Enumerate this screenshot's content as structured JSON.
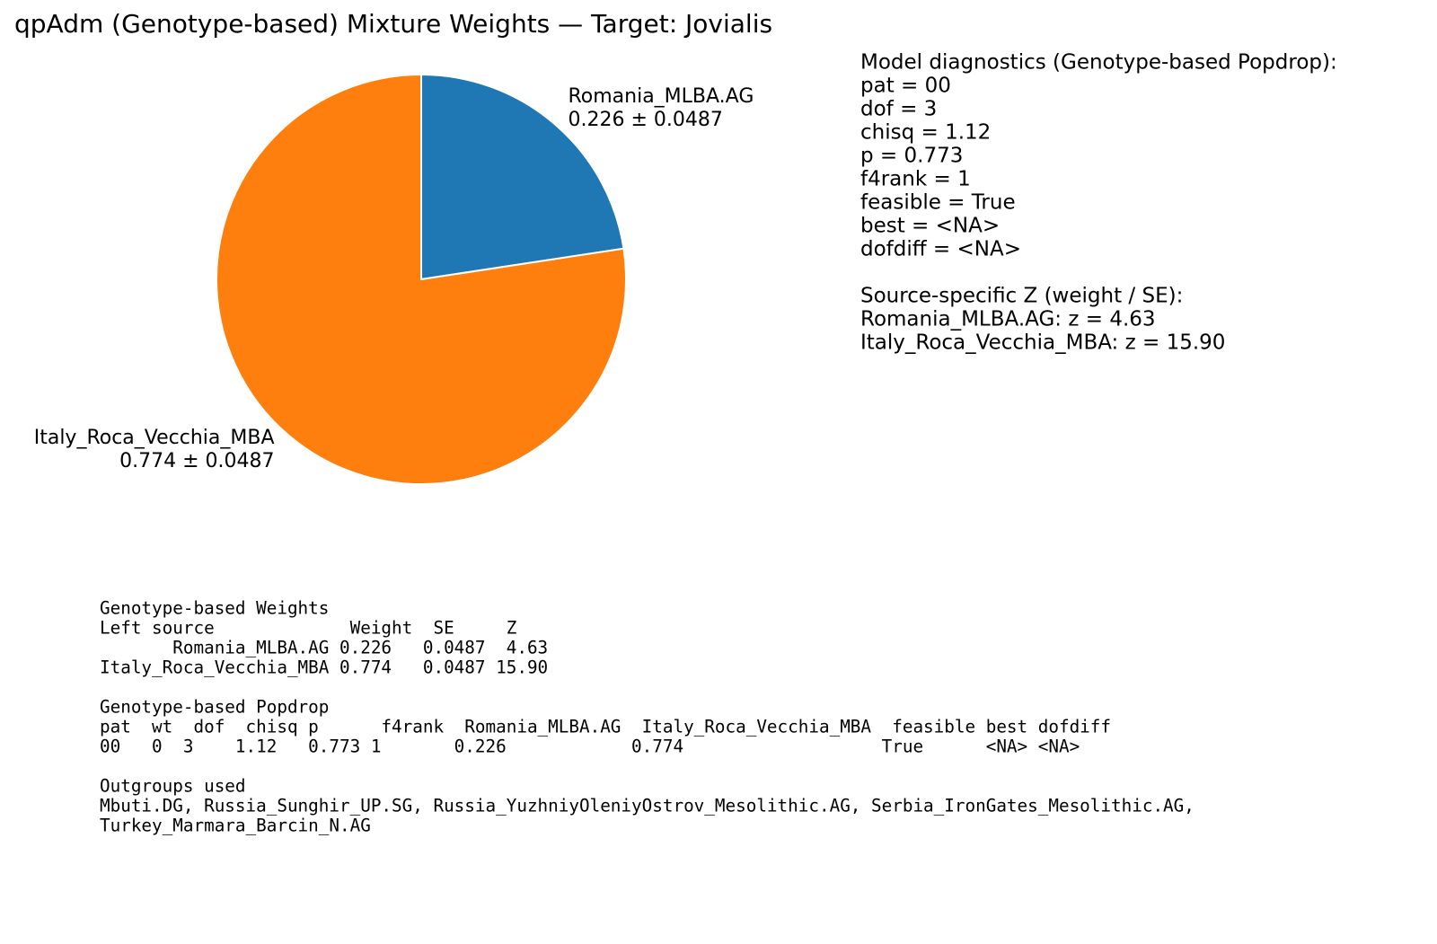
{
  "chart_data": {
    "type": "pie",
    "title": "qpAdm (Genotype-based) Mixture Weights — Target: Jovialis",
    "categories": [
      "Romania_MLBA.AG",
      "Italy_Roca_Vecchia_MBA"
    ],
    "values": [
      0.226,
      0.774
    ],
    "value_labels": [
      "0.226 ± 0.0487",
      "0.774 ± 0.0487"
    ],
    "colors": [
      "#1f77b4",
      "#ff7f0e"
    ]
  },
  "diagnostics": {
    "title": "Model diagnostics (Genotype-based Popdrop):",
    "lines": [
      "pat = 00",
      "dof = 3",
      "chisq = 1.12",
      "p = 0.773",
      "f4rank = 1",
      "feasible = True",
      "best = <NA>",
      "dofdiff = <NA>"
    ]
  },
  "z_scores": {
    "title": "Source-specific Z (weight / SE):",
    "lines": [
      "Romania_MLBA.AG: z = 4.63",
      "Italy_Roca_Vecchia_MBA: z = 15.90"
    ]
  },
  "tables": [
    {
      "title": "Genotype-based Weights",
      "lines": [
        "Left source             Weight  SE     Z",
        "       Romania_MLBA.AG 0.226   0.0487  4.63",
        "Italy_Roca_Vecchia_MBA 0.774   0.0487 15.90"
      ]
    },
    {
      "title": "Genotype-based Popdrop",
      "lines": [
        "pat  wt  dof  chisq p      f4rank  Romania_MLBA.AG  Italy_Roca_Vecchia_MBA  feasible best dofdiff",
        "00   0  3    1.12   0.773 1       0.226            0.774                   True      <NA> <NA>"
      ]
    },
    {
      "title": "Outgroups used",
      "lines": [
        "Mbuti.DG, Russia_Sunghir_UP.SG, Russia_YuzhniyOleniyOstrov_Mesolithic.AG, Serbia_IronGates_Mesolithic.AG,",
        "Turkey_Marmara_Barcin_N.AG"
      ]
    }
  ]
}
